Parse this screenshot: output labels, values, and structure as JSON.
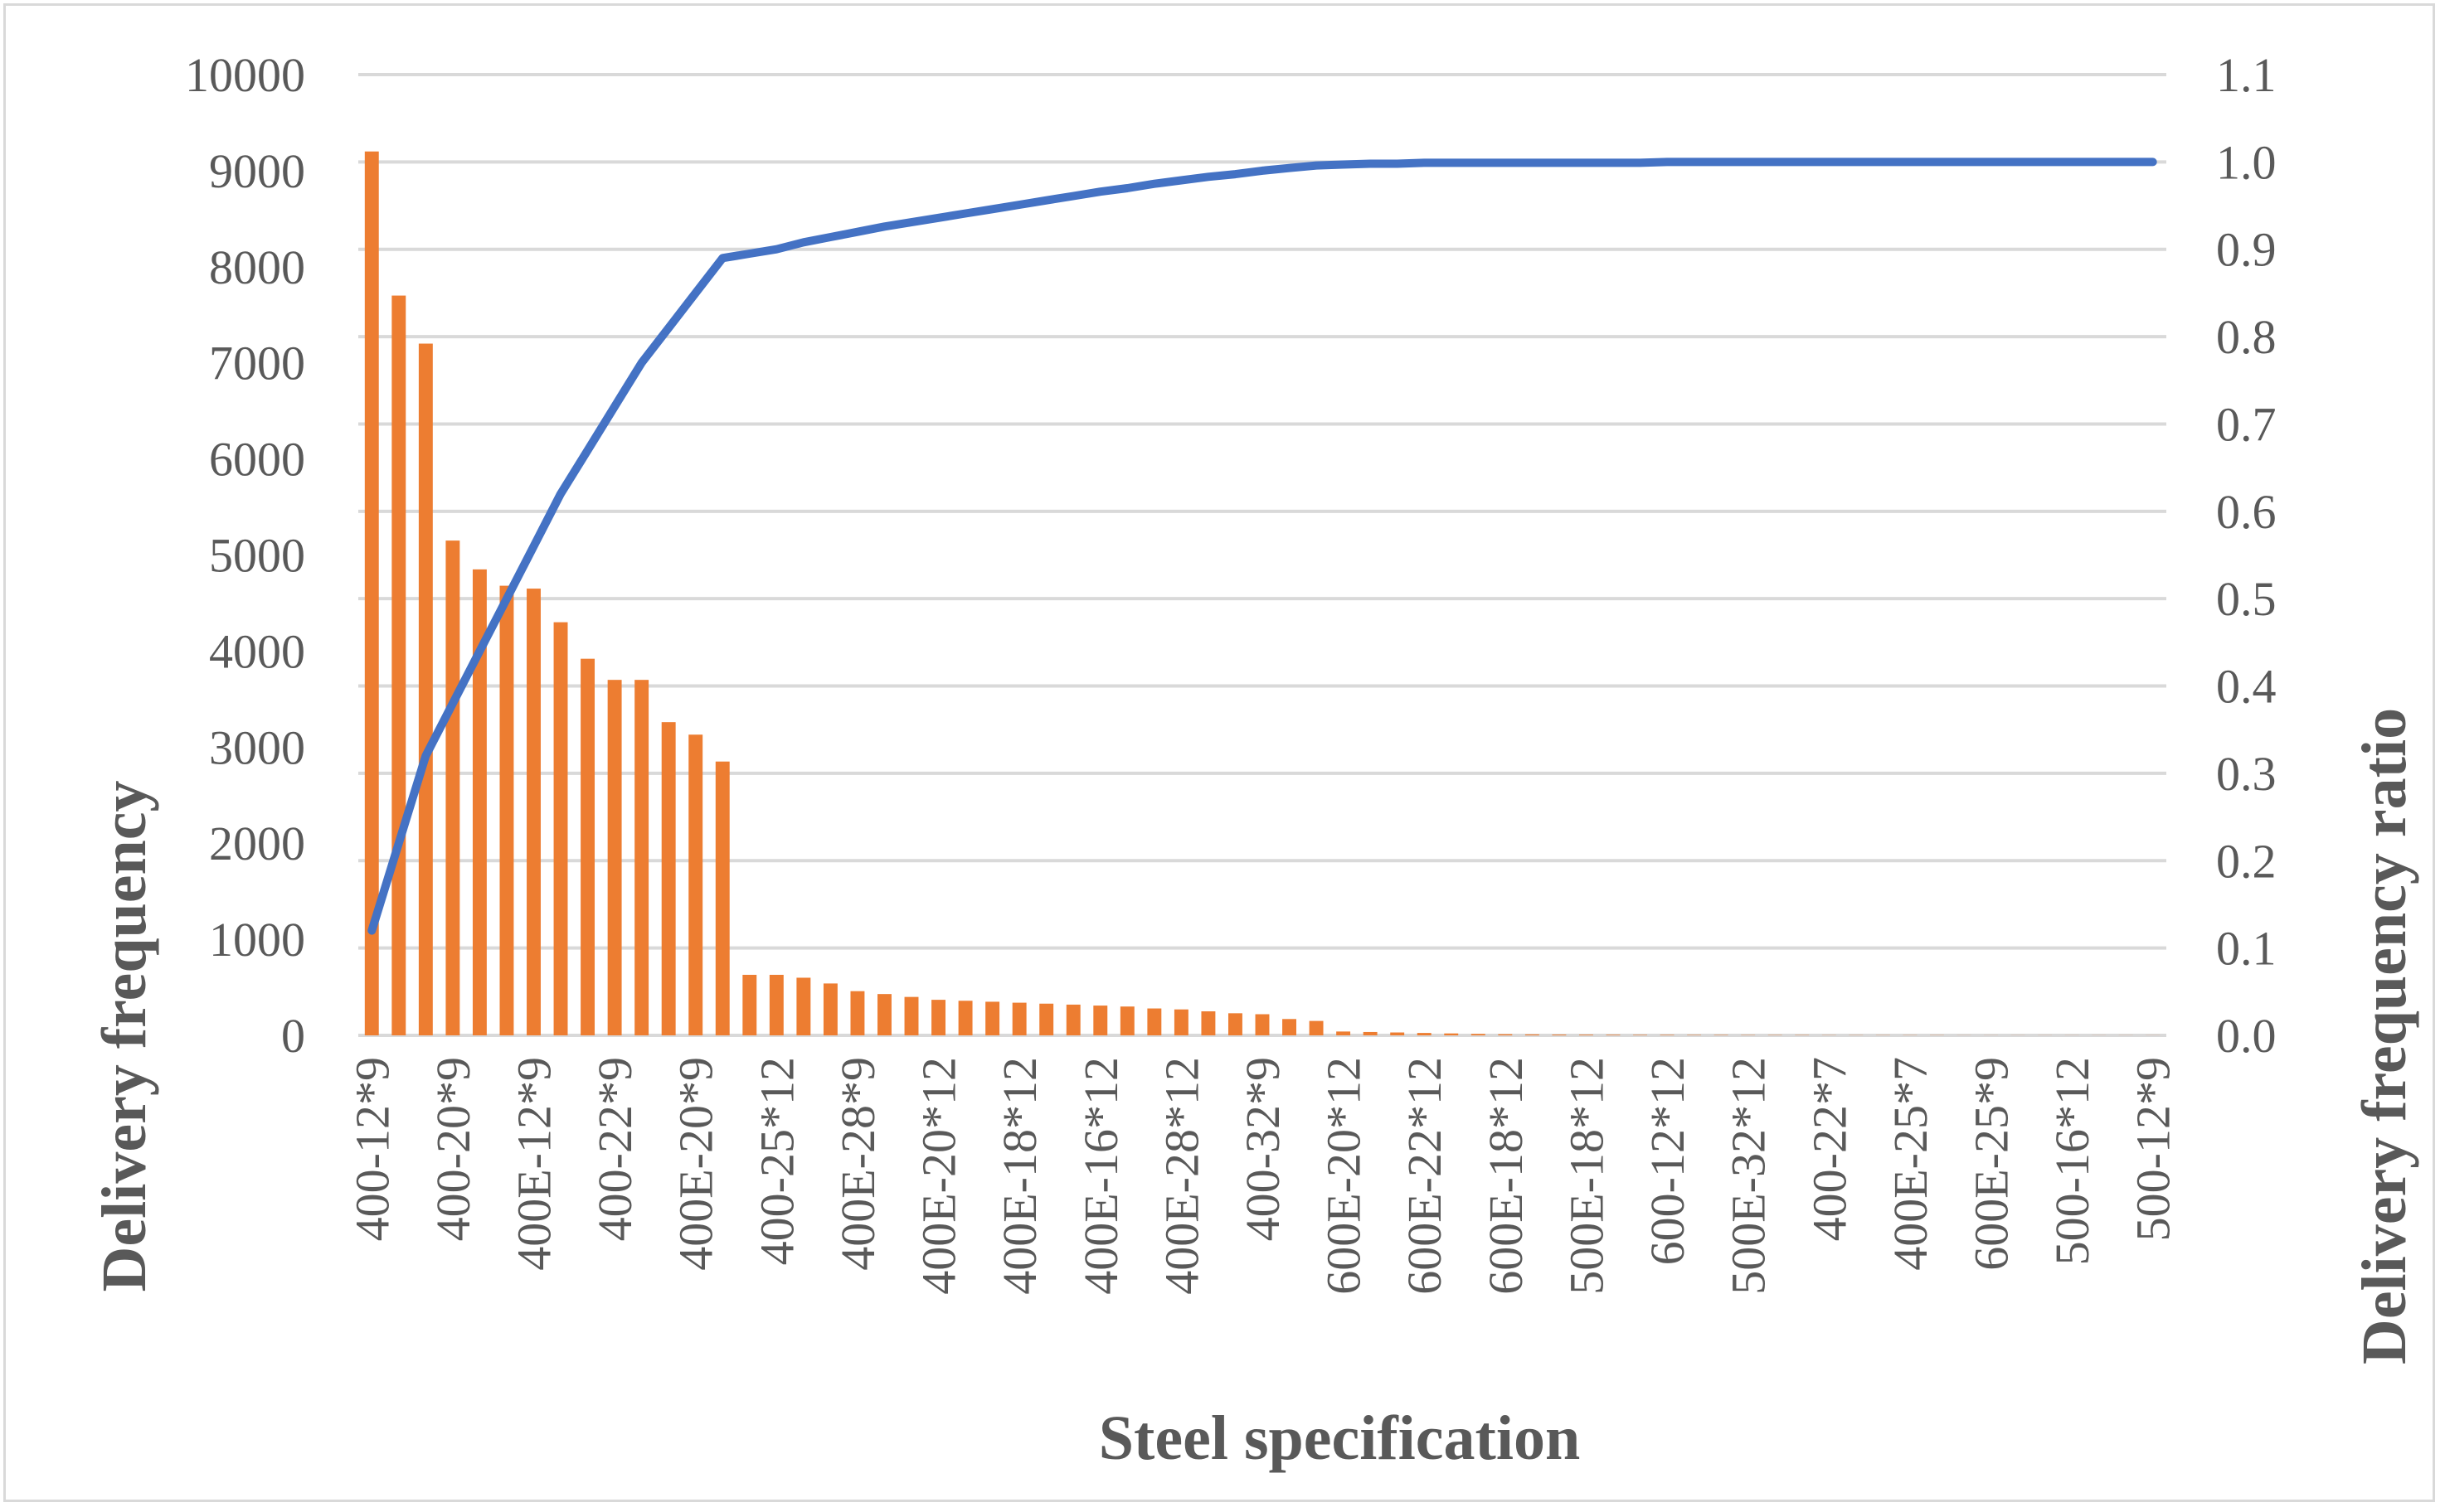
{
  "chart_data": {
    "type": "bar+line",
    "xlabel": "Steel specification",
    "ylabel": "Delivery frequency",
    "y2label": "Delivery frequency ratio",
    "ylim": [
      0,
      10000
    ],
    "y2lim": [
      0.0,
      1.1
    ],
    "y_ticks": [
      "0",
      "1000",
      "2000",
      "3000",
      "4000",
      "5000",
      "6000",
      "7000",
      "8000",
      "9000",
      "10000"
    ],
    "y2_ticks": [
      "0.0",
      "0.1",
      "0.2",
      "0.3",
      "0.4",
      "0.5",
      "0.6",
      "0.7",
      "0.8",
      "0.9",
      "1.0",
      "1.1"
    ],
    "grid": true,
    "colors": {
      "bars": "#ed7d31",
      "line": "#4472c4",
      "grid": "#d9d9d9",
      "text": "#595959"
    },
    "x_tick_labels": [
      {
        "index": 0,
        "label": "400-12*9"
      },
      {
        "index": 3,
        "label": "400-20*9"
      },
      {
        "index": 6,
        "label": "400E-12*9"
      },
      {
        "index": 9,
        "label": "400-22*9"
      },
      {
        "index": 12,
        "label": "400E-20*9"
      },
      {
        "index": 15,
        "label": "400-25*12"
      },
      {
        "index": 18,
        "label": "400E-28*9"
      },
      {
        "index": 21,
        "label": "400E-20*12"
      },
      {
        "index": 24,
        "label": "400E-18*12"
      },
      {
        "index": 27,
        "label": "400E-16*12"
      },
      {
        "index": 30,
        "label": "400E-28*12"
      },
      {
        "index": 33,
        "label": "400-32*9"
      },
      {
        "index": 36,
        "label": "600E-20*12"
      },
      {
        "index": 39,
        "label": "600E-22*12"
      },
      {
        "index": 42,
        "label": "600E-18*12"
      },
      {
        "index": 45,
        "label": "500E-18*12"
      },
      {
        "index": 48,
        "label": "600-12*12"
      },
      {
        "index": 51,
        "label": "500E-32*12"
      },
      {
        "index": 54,
        "label": "400-22*7"
      },
      {
        "index": 57,
        "label": "400E-25*7"
      },
      {
        "index": 60,
        "label": "600E-25*9"
      },
      {
        "index": 63,
        "label": "500-16*12"
      },
      {
        "index": 66,
        "label": "500-12*9"
      }
    ],
    "series": [
      {
        "name": "Delivery frequency",
        "type": "bar",
        "axis": "left",
        "values": [
          9200,
          7700,
          7200,
          5150,
          4850,
          4680,
          4650,
          4300,
          3920,
          3700,
          3700,
          3260,
          3130,
          2850,
          630,
          630,
          600,
          540,
          460,
          430,
          400,
          370,
          360,
          350,
          340,
          330,
          320,
          310,
          300,
          280,
          270,
          250,
          230,
          220,
          170,
          150,
          40,
          35,
          30,
          25,
          20,
          15,
          12,
          10,
          8,
          7,
          6,
          5,
          5,
          4,
          4,
          3,
          3,
          3,
          2,
          2,
          2,
          2,
          2,
          1,
          1,
          1,
          1,
          1,
          1,
          1,
          1
        ]
      },
      {
        "name": "Delivery frequency ratio",
        "type": "line",
        "axis": "right",
        "values": [
          0.12,
          0.22,
          0.32,
          0.38,
          0.44,
          0.5,
          0.56,
          0.62,
          0.67,
          0.72,
          0.77,
          0.81,
          0.85,
          0.89,
          0.895,
          0.9,
          0.908,
          0.914,
          0.92,
          0.926,
          0.931,
          0.936,
          0.941,
          0.946,
          0.951,
          0.956,
          0.961,
          0.966,
          0.97,
          0.975,
          0.979,
          0.983,
          0.986,
          0.99,
          0.993,
          0.996,
          0.997,
          0.998,
          0.998,
          0.999,
          0.999,
          0.999,
          0.999,
          0.999,
          0.999,
          0.999,
          0.999,
          0.999,
          1.0,
          1.0,
          1.0,
          1.0,
          1.0,
          1.0,
          1.0,
          1.0,
          1.0,
          1.0,
          1.0,
          1.0,
          1.0,
          1.0,
          1.0,
          1.0,
          1.0,
          1.0,
          1.0
        ]
      }
    ]
  }
}
